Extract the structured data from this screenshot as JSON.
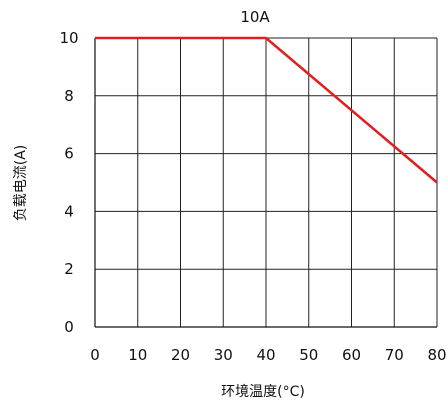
{
  "chart_data": {
    "type": "line",
    "title": "10A",
    "xlabel": "环境温度(°C)",
    "ylabel": "负载电流(A)",
    "x_ticks": [
      "0",
      "10",
      "20",
      "30",
      "40",
      "50",
      "60",
      "70",
      "80"
    ],
    "y_ticks": [
      "0",
      "2",
      "4",
      "6",
      "8",
      "10"
    ],
    "xlim": [
      0,
      80
    ],
    "ylim": [
      0,
      10
    ],
    "grid": true,
    "series": [
      {
        "x": [
          0,
          40,
          80
        ],
        "y": [
          10,
          10,
          5
        ],
        "color": "#e02020"
      }
    ]
  }
}
